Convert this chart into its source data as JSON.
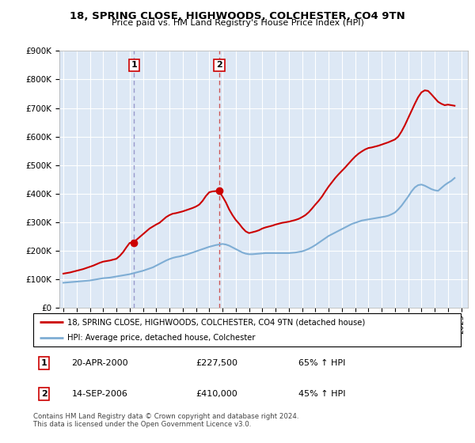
{
  "title_line1": "18, SPRING CLOSE, HIGHWOODS, COLCHESTER, CO4 9TN",
  "title_line2": "Price paid vs. HM Land Registry's House Price Index (HPI)",
  "legend_red": "18, SPRING CLOSE, HIGHWOODS, COLCHESTER, CO4 9TN (detached house)",
  "legend_blue": "HPI: Average price, detached house, Colchester",
  "sale1_date": "20-APR-2000",
  "sale1_price": 227500,
  "sale1_label": "1",
  "sale1_pct": "65% ↑ HPI",
  "sale2_date": "14-SEP-2006",
  "sale2_price": 410000,
  "sale2_label": "2",
  "sale2_pct": "45% ↑ HPI",
  "footer": "Contains HM Land Registry data © Crown copyright and database right 2024.\nThis data is licensed under the Open Government Licence v3.0.",
  "red_color": "#cc0000",
  "blue_color": "#7eadd4",
  "ylim": [
    0,
    900000
  ],
  "xlim_start": 1994.7,
  "xlim_end": 2025.5,
  "red_x": [
    1995.0,
    1995.25,
    1995.5,
    1995.75,
    1996.0,
    1996.25,
    1996.5,
    1996.75,
    1997.0,
    1997.25,
    1997.5,
    1997.75,
    1998.0,
    1998.25,
    1998.5,
    1998.75,
    1999.0,
    1999.25,
    1999.5,
    1999.75,
    2000.0,
    2000.33,
    2000.5,
    2000.75,
    2001.0,
    2001.25,
    2001.5,
    2001.75,
    2002.0,
    2002.25,
    2002.5,
    2002.75,
    2003.0,
    2003.25,
    2003.5,
    2003.75,
    2004.0,
    2004.25,
    2004.5,
    2004.75,
    2005.0,
    2005.25,
    2005.5,
    2005.75,
    2006.0,
    2006.25,
    2006.72,
    2007.0,
    2007.25,
    2007.5,
    2007.75,
    2008.0,
    2008.25,
    2008.5,
    2008.75,
    2009.0,
    2009.25,
    2009.5,
    2009.75,
    2010.0,
    2010.25,
    2010.5,
    2010.75,
    2011.0,
    2011.25,
    2011.5,
    2011.75,
    2012.0,
    2012.25,
    2012.5,
    2012.75,
    2013.0,
    2013.25,
    2013.5,
    2013.75,
    2014.0,
    2014.25,
    2014.5,
    2014.75,
    2015.0,
    2015.25,
    2015.5,
    2015.75,
    2016.0,
    2016.25,
    2016.5,
    2016.75,
    2017.0,
    2017.25,
    2017.5,
    2017.75,
    2018.0,
    2018.25,
    2018.5,
    2018.75,
    2019.0,
    2019.25,
    2019.5,
    2019.75,
    2020.0,
    2020.25,
    2020.5,
    2020.75,
    2021.0,
    2021.25,
    2021.5,
    2021.75,
    2022.0,
    2022.25,
    2022.5,
    2022.75,
    2023.0,
    2023.25,
    2023.5,
    2023.75,
    2024.0,
    2024.25,
    2024.5
  ],
  "red_y": [
    120000,
    122000,
    124000,
    127000,
    130000,
    133000,
    136000,
    140000,
    144000,
    148000,
    153000,
    158000,
    162000,
    164000,
    166000,
    169000,
    172000,
    182000,
    195000,
    212000,
    227500,
    230000,
    238000,
    248000,
    258000,
    268000,
    278000,
    285000,
    292000,
    298000,
    308000,
    318000,
    325000,
    330000,
    332000,
    335000,
    338000,
    342000,
    346000,
    350000,
    355000,
    362000,
    375000,
    392000,
    405000,
    408000,
    410000,
    390000,
    370000,
    345000,
    325000,
    308000,
    295000,
    280000,
    268000,
    262000,
    265000,
    268000,
    272000,
    278000,
    282000,
    285000,
    288000,
    292000,
    295000,
    298000,
    300000,
    302000,
    305000,
    308000,
    312000,
    318000,
    325000,
    335000,
    348000,
    362000,
    375000,
    390000,
    408000,
    425000,
    440000,
    455000,
    468000,
    480000,
    492000,
    505000,
    518000,
    530000,
    540000,
    548000,
    555000,
    560000,
    562000,
    565000,
    568000,
    572000,
    576000,
    580000,
    585000,
    590000,
    600000,
    618000,
    640000,
    665000,
    690000,
    715000,
    738000,
    755000,
    762000,
    760000,
    748000,
    735000,
    722000,
    715000,
    710000,
    712000,
    710000,
    708000
  ],
  "blue_x": [
    1995.0,
    1995.25,
    1995.5,
    1995.75,
    1996.0,
    1996.25,
    1996.5,
    1996.75,
    1997.0,
    1997.25,
    1997.5,
    1997.75,
    1998.0,
    1998.25,
    1998.5,
    1998.75,
    1999.0,
    1999.25,
    1999.5,
    1999.75,
    2000.0,
    2000.25,
    2000.5,
    2000.75,
    2001.0,
    2001.25,
    2001.5,
    2001.75,
    2002.0,
    2002.25,
    2002.5,
    2002.75,
    2003.0,
    2003.25,
    2003.5,
    2003.75,
    2004.0,
    2004.25,
    2004.5,
    2004.75,
    2005.0,
    2005.25,
    2005.5,
    2005.75,
    2006.0,
    2006.25,
    2006.5,
    2006.75,
    2007.0,
    2007.25,
    2007.5,
    2007.75,
    2008.0,
    2008.25,
    2008.5,
    2008.75,
    2009.0,
    2009.25,
    2009.5,
    2009.75,
    2010.0,
    2010.25,
    2010.5,
    2010.75,
    2011.0,
    2011.25,
    2011.5,
    2011.75,
    2012.0,
    2012.25,
    2012.5,
    2012.75,
    2013.0,
    2013.25,
    2013.5,
    2013.75,
    2014.0,
    2014.25,
    2014.5,
    2014.75,
    2015.0,
    2015.25,
    2015.5,
    2015.75,
    2016.0,
    2016.25,
    2016.5,
    2016.75,
    2017.0,
    2017.25,
    2017.5,
    2017.75,
    2018.0,
    2018.25,
    2018.5,
    2018.75,
    2019.0,
    2019.25,
    2019.5,
    2019.75,
    2020.0,
    2020.25,
    2020.5,
    2020.75,
    2021.0,
    2021.25,
    2021.5,
    2021.75,
    2022.0,
    2022.25,
    2022.5,
    2022.75,
    2023.0,
    2023.25,
    2023.5,
    2023.75,
    2024.0,
    2024.25,
    2024.5
  ],
  "blue_y": [
    88000,
    89000,
    90000,
    91000,
    92000,
    93000,
    94000,
    95000,
    96000,
    98000,
    100000,
    102000,
    104000,
    105000,
    106000,
    108000,
    110000,
    112000,
    114000,
    116000,
    118000,
    121000,
    124000,
    127000,
    130000,
    134000,
    138000,
    142000,
    148000,
    154000,
    160000,
    166000,
    171000,
    175000,
    178000,
    180000,
    183000,
    186000,
    190000,
    194000,
    198000,
    202000,
    206000,
    210000,
    214000,
    217000,
    220000,
    222000,
    224000,
    222000,
    218000,
    212000,
    206000,
    200000,
    194000,
    190000,
    188000,
    188000,
    189000,
    190000,
    191000,
    192000,
    192000,
    192000,
    192000,
    192000,
    192000,
    192000,
    192000,
    193000,
    194000,
    196000,
    198000,
    202000,
    207000,
    213000,
    220000,
    228000,
    236000,
    244000,
    252000,
    258000,
    264000,
    270000,
    276000,
    282000,
    288000,
    294000,
    298000,
    302000,
    306000,
    308000,
    310000,
    312000,
    314000,
    316000,
    318000,
    320000,
    323000,
    328000,
    334000,
    345000,
    358000,
    374000,
    390000,
    408000,
    422000,
    430000,
    432000,
    428000,
    422000,
    416000,
    412000,
    410000,
    420000,
    430000,
    438000,
    445000,
    455000
  ],
  "yticks": [
    0,
    100000,
    200000,
    300000,
    400000,
    500000,
    600000,
    700000,
    800000,
    900000
  ],
  "ytick_labels": [
    "£0",
    "£100K",
    "£200K",
    "£300K",
    "£400K",
    "£500K",
    "£600K",
    "£700K",
    "£800K",
    "£900K"
  ],
  "xticks": [
    1995,
    1996,
    1997,
    1998,
    1999,
    2000,
    2001,
    2002,
    2003,
    2004,
    2005,
    2006,
    2007,
    2008,
    2009,
    2010,
    2011,
    2012,
    2013,
    2014,
    2015,
    2016,
    2017,
    2018,
    2019,
    2020,
    2021,
    2022,
    2023,
    2024,
    2025
  ]
}
